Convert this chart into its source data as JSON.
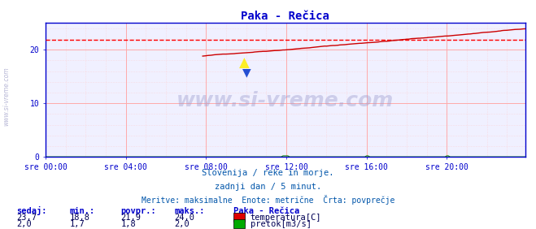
{
  "title": "Paka - Rečica",
  "title_color": "#0000cc",
  "bg_color": "#ffffff",
  "plot_bg_color": "#f0f0ff",
  "grid_color_major": "#ffaaaa",
  "grid_color_minor": "#ffcccc",
  "axis_color": "#0000cc",
  "border_color": "#0000cc",
  "xlabel_ticks": [
    "sre 00:00",
    "sre 04:00",
    "sre 08:00",
    "sre 12:00",
    "sre 16:00",
    "sre 20:00"
  ],
  "xlabel_tick_positions": [
    0,
    48,
    96,
    144,
    192,
    240
  ],
  "xlim": [
    0,
    287
  ],
  "ylim": [
    0,
    25
  ],
  "yticks": [
    0,
    10,
    20
  ],
  "temp_avg_line": 21.9,
  "temp_avg_color": "#ff0000",
  "temp_line_color": "#cc0000",
  "flow_line_color": "#007700",
  "watermark_text": "www.si-vreme.com",
  "subtitle1": "Slovenija / reke in morje.",
  "subtitle2": "zadnji dan / 5 minut.",
  "subtitle3": "Meritve: maksimalne  Enote: metrične  Črta: povprečje",
  "subtitle_color": "#0055aa",
  "table_headers": [
    "sedaj:",
    "min.:",
    "povpr.:",
    "maks.:"
  ],
  "table_row1": [
    "23,7",
    "18,8",
    "21,9",
    "24,0"
  ],
  "table_row2": [
    "2,0",
    "1,7",
    "1,8",
    "2,0"
  ],
  "legend_title": "Paka - Rečica",
  "legend_item1": "temperatura[C]",
  "legend_item2": "pretok[m3/s]",
  "legend_color1": "#dd0000",
  "legend_color2": "#00aa00",
  "header_color": "#0000cc",
  "value_color": "#000055",
  "sidewater_color": "#8888bb",
  "temp_start_idx": 94,
  "n_points": 288
}
